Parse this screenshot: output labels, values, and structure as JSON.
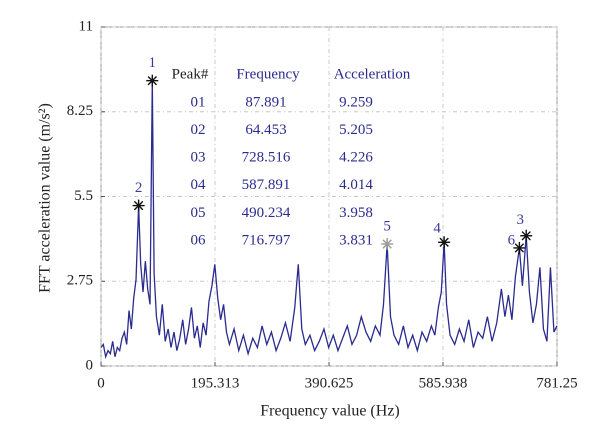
{
  "chart_data": {
    "type": "line",
    "xlabel": "Frequency value (Hz)",
    "ylabel": "FFT acceleration value (m/s²)",
    "xlim": [
      0,
      781.25
    ],
    "ylim": [
      0,
      11
    ],
    "xticks": [
      0,
      195.313,
      390.625,
      585.938,
      781.25
    ],
    "yticks": [
      0,
      2.75,
      5.5,
      8.25,
      11
    ],
    "grid": true,
    "series": [
      {
        "color": "#2b2b8f",
        "x": [
          0,
          4,
          8,
          12,
          16,
          20,
          24,
          28,
          32,
          36,
          40,
          44,
          48,
          52,
          56,
          60,
          64.453,
          68,
          72,
          76,
          80,
          84,
          87.891,
          91,
          95,
          100,
          105,
          110,
          115,
          120,
          125,
          130,
          135,
          140,
          145,
          150,
          155,
          160,
          165,
          170,
          175,
          180,
          185,
          190,
          195,
          200,
          205,
          210,
          215,
          220,
          228,
          236,
          244,
          252,
          260,
          268,
          276,
          284,
          292,
          300,
          308,
          316,
          324,
          332,
          338,
          344,
          350,
          358,
          366,
          374,
          382,
          390,
          398,
          406,
          414,
          422,
          430,
          438,
          446,
          454,
          462,
          470,
          478,
          484,
          490.234,
          496,
          502,
          510,
          518,
          526,
          534,
          542,
          550,
          558,
          566,
          572,
          578,
          583,
          587.891,
          592,
          598,
          606,
          614,
          622,
          630,
          638,
          646,
          654,
          662,
          670,
          678,
          686,
          692,
          698,
          704,
          710,
          716.797,
          722,
          728.516,
          734,
          740,
          746,
          752,
          758,
          764,
          770,
          776,
          781
        ],
        "values": [
          0.6,
          0.7,
          0.3,
          0.5,
          0.4,
          0.8,
          0.3,
          0.6,
          0.5,
          0.9,
          1.1,
          0.7,
          1.8,
          1.2,
          2.2,
          2.8,
          5.205,
          3.3,
          2.4,
          3.4,
          2.5,
          2.0,
          9.259,
          3.0,
          1.6,
          1.0,
          2.0,
          0.8,
          1.2,
          0.6,
          1.1,
          0.5,
          0.9,
          1.5,
          0.7,
          1.2,
          1.9,
          0.9,
          1.3,
          0.6,
          1.4,
          1.0,
          2.1,
          2.6,
          3.3,
          2.2,
          1.5,
          2.0,
          1.1,
          0.7,
          1.2,
          0.5,
          1.0,
          0.4,
          0.9,
          0.6,
          1.3,
          0.7,
          1.1,
          0.5,
          0.9,
          1.4,
          0.8,
          1.9,
          3.3,
          1.2,
          0.7,
          1.0,
          0.5,
          0.8,
          1.2,
          0.6,
          1.0,
          0.5,
          0.9,
          1.3,
          0.7,
          1.0,
          1.6,
          1.1,
          0.8,
          1.3,
          1.0,
          2.0,
          3.958,
          1.6,
          1.0,
          0.7,
          1.3,
          0.6,
          1.0,
          0.5,
          1.1,
          0.8,
          1.3,
          1.0,
          1.9,
          2.4,
          4.014,
          2.0,
          1.0,
          0.7,
          1.2,
          0.8,
          1.5,
          0.6,
          1.1,
          0.9,
          1.6,
          0.8,
          1.4,
          2.5,
          1.6,
          2.3,
          1.5,
          2.9,
          3.831,
          2.6,
          4.226,
          2.4,
          1.4,
          2.0,
          3.2,
          1.2,
          0.8,
          3.2,
          1.1,
          1.3
        ]
      }
    ],
    "peaks": {
      "labels": [
        "1",
        "2",
        "3",
        "4",
        "5",
        "6"
      ],
      "x": [
        87.891,
        64.453,
        728.516,
        587.891,
        490.234,
        716.797
      ],
      "values": [
        9.259,
        5.205,
        4.226,
        4.014,
        3.958,
        3.831
      ],
      "colors": [
        "#111111",
        "#111111",
        "#111111",
        "#111111",
        "#9a9a9a",
        "#111111"
      ],
      "label_color": "#3a3a9a"
    },
    "table": {
      "header": [
        "Peak#",
        "Frequency",
        "Acceleration"
      ],
      "ids": [
        "01",
        "02",
        "03",
        "04",
        "05",
        "06"
      ]
    }
  }
}
